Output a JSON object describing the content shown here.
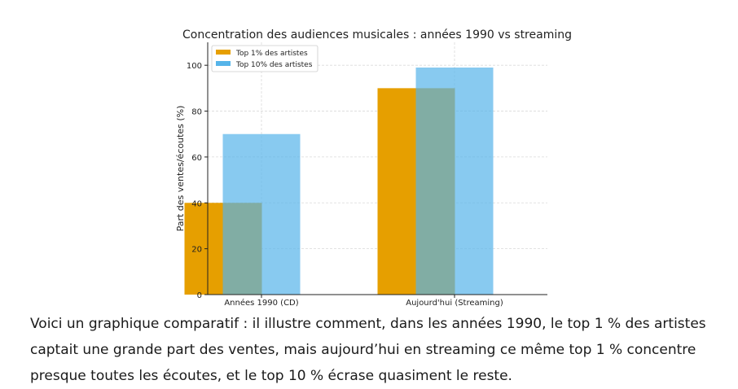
{
  "chart_data": {
    "type": "bar",
    "title": "Concentration des audiences musicales : années 1990 vs streaming",
    "xlabel": "",
    "ylabel": "Part des ventes/écoutes (%)",
    "categories": [
      "Années 1990 (CD)",
      "Aujourd'hui (Streaming)"
    ],
    "series": [
      {
        "name": "Top 1% des artistes",
        "values": [
          40,
          90
        ],
        "color": "#E69F00"
      },
      {
        "name": "Top 10% des artistes",
        "values": [
          70,
          99
        ],
        "color": "#56B4E9"
      }
    ],
    "ylim": [
      0,
      110
    ],
    "yticks": [
      0,
      20,
      40,
      60,
      80,
      100
    ],
    "grid": true,
    "legend": "top-left"
  },
  "caption": "Voici un graphique comparatif : il illustre comment, dans les années 1990, le top 1 % des artistes captait une grande part des ventes, mais aujourd’hui en streaming ce même top 1 % concentre presque toutes les écoutes, et le top 10 % écrase quasiment le reste."
}
